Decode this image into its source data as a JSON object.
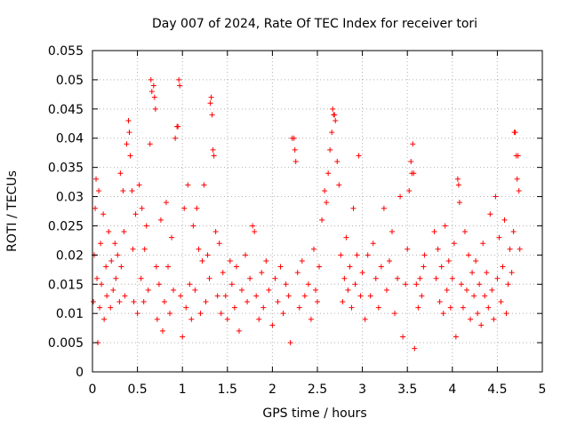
{
  "chart_data": {
    "type": "scatter",
    "title": "Day 007 of 2024, Rate Of TEC Index for receiver tori",
    "xlabel": "GPS time / hours",
    "ylabel": "ROTI / TECUs",
    "xlim": [
      0,
      5
    ],
    "ylim": [
      0,
      0.055
    ],
    "grid": true,
    "marker": "+",
    "series_color": "#ff0000",
    "x_ticks": [
      {
        "value": 0,
        "label": "0"
      },
      {
        "value": 0.5,
        "label": "0.5"
      },
      {
        "value": 1,
        "label": "1"
      },
      {
        "value": 1.5,
        "label": "1.5"
      },
      {
        "value": 2,
        "label": "2"
      },
      {
        "value": 2.5,
        "label": "2.5"
      },
      {
        "value": 3,
        "label": "3"
      },
      {
        "value": 3.5,
        "label": "3.5"
      },
      {
        "value": 4,
        "label": "4"
      },
      {
        "value": 4.5,
        "label": "4.5"
      },
      {
        "value": 5,
        "label": "5"
      }
    ],
    "y_ticks": [
      {
        "value": 0,
        "label": "0"
      },
      {
        "value": 0.005,
        "label": "0.005"
      },
      {
        "value": 0.01,
        "label": "0.01"
      },
      {
        "value": 0.015,
        "label": "0.015"
      },
      {
        "value": 0.02,
        "label": "0.02"
      },
      {
        "value": 0.025,
        "label": "0.025"
      },
      {
        "value": 0.03,
        "label": "0.03"
      },
      {
        "value": 0.035,
        "label": "0.035"
      },
      {
        "value": 0.04,
        "label": "0.04"
      },
      {
        "value": 0.045,
        "label": "0.045"
      },
      {
        "value": 0.05,
        "label": "0.05"
      },
      {
        "value": 0.055,
        "label": "0.055"
      }
    ],
    "series": [
      {
        "name": "ROTI",
        "points": [
          [
            0.01,
            0.012
          ],
          [
            0.02,
            0.02
          ],
          [
            0.03,
            0.028
          ],
          [
            0.04,
            0.033
          ],
          [
            0.05,
            0.016
          ],
          [
            0.06,
            0.005
          ],
          [
            0.07,
            0.031
          ],
          [
            0.08,
            0.011
          ],
          [
            0.09,
            0.022
          ],
          [
            0.1,
            0.015
          ],
          [
            0.12,
            0.027
          ],
          [
            0.13,
            0.009
          ],
          [
            0.15,
            0.018
          ],
          [
            0.16,
            0.013
          ],
          [
            0.18,
            0.024
          ],
          [
            0.2,
            0.011
          ],
          [
            0.21,
            0.019
          ],
          [
            0.23,
            0.014
          ],
          [
            0.25,
            0.022
          ],
          [
            0.26,
            0.016
          ],
          [
            0.28,
            0.02
          ],
          [
            0.3,
            0.012
          ],
          [
            0.31,
            0.034
          ],
          [
            0.32,
            0.018
          ],
          [
            0.34,
            0.031
          ],
          [
            0.35,
            0.024
          ],
          [
            0.36,
            0.013
          ],
          [
            0.38,
            0.039
          ],
          [
            0.4,
            0.043
          ],
          [
            0.41,
            0.041
          ],
          [
            0.42,
            0.037
          ],
          [
            0.44,
            0.031
          ],
          [
            0.45,
            0.021
          ],
          [
            0.46,
            0.012
          ],
          [
            0.48,
            0.027
          ],
          [
            0.5,
            0.01
          ],
          [
            0.52,
            0.032
          ],
          [
            0.54,
            0.016
          ],
          [
            0.55,
            0.028
          ],
          [
            0.57,
            0.012
          ],
          [
            0.58,
            0.021
          ],
          [
            0.6,
            0.025
          ],
          [
            0.62,
            0.014
          ],
          [
            0.64,
            0.039
          ],
          [
            0.65,
            0.05
          ],
          [
            0.66,
            0.048
          ],
          [
            0.68,
            0.049
          ],
          [
            0.69,
            0.047
          ],
          [
            0.7,
            0.045
          ],
          [
            0.71,
            0.018
          ],
          [
            0.72,
            0.009
          ],
          [
            0.74,
            0.015
          ],
          [
            0.76,
            0.026
          ],
          [
            0.78,
            0.007
          ],
          [
            0.8,
            0.012
          ],
          [
            0.82,
            0.029
          ],
          [
            0.84,
            0.018
          ],
          [
            0.86,
            0.01
          ],
          [
            0.88,
            0.023
          ],
          [
            0.9,
            0.014
          ],
          [
            0.92,
            0.04
          ],
          [
            0.94,
            0.042
          ],
          [
            0.95,
            0.042
          ],
          [
            0.96,
            0.05
          ],
          [
            0.97,
            0.049
          ],
          [
            0.98,
            0.013
          ],
          [
            1.0,
            0.006
          ],
          [
            1.02,
            0.028
          ],
          [
            1.04,
            0.011
          ],
          [
            1.06,
            0.032
          ],
          [
            1.08,
            0.015
          ],
          [
            1.1,
            0.009
          ],
          [
            1.12,
            0.025
          ],
          [
            1.14,
            0.014
          ],
          [
            1.16,
            0.028
          ],
          [
            1.18,
            0.021
          ],
          [
            1.2,
            0.01
          ],
          [
            1.22,
            0.019
          ],
          [
            1.24,
            0.032
          ],
          [
            1.26,
            0.012
          ],
          [
            1.28,
            0.02
          ],
          [
            1.3,
            0.016
          ],
          [
            1.31,
            0.046
          ],
          [
            1.32,
            0.047
          ],
          [
            1.33,
            0.044
          ],
          [
            1.34,
            0.038
          ],
          [
            1.35,
            0.037
          ],
          [
            1.37,
            0.024
          ],
          [
            1.39,
            0.013
          ],
          [
            1.41,
            0.022
          ],
          [
            1.43,
            0.01
          ],
          [
            1.45,
            0.017
          ],
          [
            1.48,
            0.013
          ],
          [
            1.5,
            0.009
          ],
          [
            1.53,
            0.019
          ],
          [
            1.55,
            0.015
          ],
          [
            1.58,
            0.011
          ],
          [
            1.6,
            0.018
          ],
          [
            1.63,
            0.007
          ],
          [
            1.66,
            0.014
          ],
          [
            1.7,
            0.02
          ],
          [
            1.72,
            0.012
          ],
          [
            1.75,
            0.016
          ],
          [
            1.78,
            0.025
          ],
          [
            1.8,
            0.024
          ],
          [
            1.82,
            0.013
          ],
          [
            1.85,
            0.009
          ],
          [
            1.88,
            0.017
          ],
          [
            1.9,
            0.011
          ],
          [
            1.93,
            0.019
          ],
          [
            1.96,
            0.014
          ],
          [
            2.0,
            0.008
          ],
          [
            2.03,
            0.016
          ],
          [
            2.06,
            0.012
          ],
          [
            2.09,
            0.018
          ],
          [
            2.12,
            0.01
          ],
          [
            2.15,
            0.015
          ],
          [
            2.18,
            0.013
          ],
          [
            2.2,
            0.005
          ],
          [
            2.22,
            0.04
          ],
          [
            2.24,
            0.04
          ],
          [
            2.25,
            0.038
          ],
          [
            2.26,
            0.036
          ],
          [
            2.28,
            0.017
          ],
          [
            2.3,
            0.011
          ],
          [
            2.33,
            0.019
          ],
          [
            2.36,
            0.013
          ],
          [
            2.4,
            0.015
          ],
          [
            2.43,
            0.009
          ],
          [
            2.46,
            0.021
          ],
          [
            2.48,
            0.014
          ],
          [
            2.5,
            0.012
          ],
          [
            2.52,
            0.018
          ],
          [
            2.55,
            0.026
          ],
          [
            2.58,
            0.031
          ],
          [
            2.6,
            0.029
          ],
          [
            2.62,
            0.034
          ],
          [
            2.64,
            0.038
          ],
          [
            2.66,
            0.041
          ],
          [
            2.67,
            0.045
          ],
          [
            2.68,
            0.044
          ],
          [
            2.69,
            0.044
          ],
          [
            2.7,
            0.043
          ],
          [
            2.72,
            0.036
          ],
          [
            2.74,
            0.032
          ],
          [
            2.76,
            0.02
          ],
          [
            2.78,
            0.012
          ],
          [
            2.8,
            0.016
          ],
          [
            2.82,
            0.023
          ],
          [
            2.84,
            0.014
          ],
          [
            2.86,
            0.018
          ],
          [
            2.88,
            0.011
          ],
          [
            2.9,
            0.028
          ],
          [
            2.92,
            0.015
          ],
          [
            2.94,
            0.02
          ],
          [
            2.96,
            0.037
          ],
          [
            2.98,
            0.013
          ],
          [
            3.0,
            0.017
          ],
          [
            3.03,
            0.009
          ],
          [
            3.06,
            0.02
          ],
          [
            3.09,
            0.013
          ],
          [
            3.12,
            0.022
          ],
          [
            3.15,
            0.016
          ],
          [
            3.18,
            0.011
          ],
          [
            3.21,
            0.018
          ],
          [
            3.24,
            0.028
          ],
          [
            3.27,
            0.014
          ],
          [
            3.3,
            0.019
          ],
          [
            3.33,
            0.024
          ],
          [
            3.36,
            0.01
          ],
          [
            3.39,
            0.016
          ],
          [
            3.42,
            0.03
          ],
          [
            3.45,
            0.006
          ],
          [
            3.48,
            0.015
          ],
          [
            3.5,
            0.021
          ],
          [
            3.52,
            0.031
          ],
          [
            3.54,
            0.036
          ],
          [
            3.55,
            0.034
          ],
          [
            3.56,
            0.039
          ],
          [
            3.57,
            0.034
          ],
          [
            3.58,
            0.004
          ],
          [
            3.6,
            0.015
          ],
          [
            3.62,
            0.011
          ],
          [
            3.64,
            0.016
          ],
          [
            3.66,
            0.013
          ],
          [
            3.68,
            0.018
          ],
          [
            3.69,
            0.02
          ],
          [
            3.8,
            0.024
          ],
          [
            3.82,
            0.016
          ],
          [
            3.84,
            0.021
          ],
          [
            3.86,
            0.012
          ],
          [
            3.88,
            0.018
          ],
          [
            3.9,
            0.01
          ],
          [
            3.92,
            0.025
          ],
          [
            3.94,
            0.014
          ],
          [
            3.96,
            0.019
          ],
          [
            3.98,
            0.011
          ],
          [
            4.0,
            0.016
          ],
          [
            4.02,
            0.022
          ],
          [
            4.04,
            0.006
          ],
          [
            4.06,
            0.033
          ],
          [
            4.07,
            0.032
          ],
          [
            4.08,
            0.029
          ],
          [
            4.1,
            0.015
          ],
          [
            4.12,
            0.011
          ],
          [
            4.14,
            0.024
          ],
          [
            4.16,
            0.014
          ],
          [
            4.18,
            0.02
          ],
          [
            4.2,
            0.009
          ],
          [
            4.22,
            0.017
          ],
          [
            4.24,
            0.013
          ],
          [
            4.26,
            0.019
          ],
          [
            4.28,
            0.01
          ],
          [
            4.3,
            0.015
          ],
          [
            4.32,
            0.008
          ],
          [
            4.34,
            0.022
          ],
          [
            4.36,
            0.013
          ],
          [
            4.38,
            0.017
          ],
          [
            4.4,
            0.011
          ],
          [
            4.42,
            0.027
          ],
          [
            4.44,
            0.014
          ],
          [
            4.46,
            0.009
          ],
          [
            4.48,
            0.03
          ],
          [
            4.5,
            0.016
          ],
          [
            4.52,
            0.023
          ],
          [
            4.54,
            0.012
          ],
          [
            4.56,
            0.018
          ],
          [
            4.58,
            0.026
          ],
          [
            4.6,
            0.01
          ],
          [
            4.62,
            0.015
          ],
          [
            4.64,
            0.021
          ],
          [
            4.66,
            0.017
          ],
          [
            4.68,
            0.024
          ],
          [
            4.69,
            0.041
          ],
          [
            4.7,
            0.041
          ],
          [
            4.71,
            0.037
          ],
          [
            4.72,
            0.033
          ],
          [
            4.73,
            0.037
          ],
          [
            4.74,
            0.031
          ],
          [
            4.75,
            0.021
          ]
        ]
      }
    ]
  }
}
